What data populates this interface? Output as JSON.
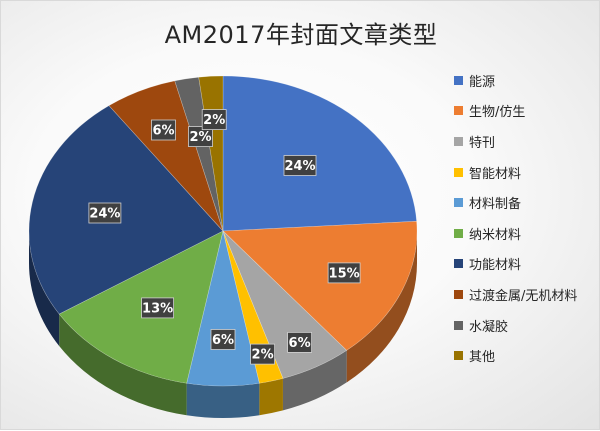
{
  "chart_data": {
    "type": "pie",
    "title": "AM2017年封面文章类型",
    "categories": [
      "能源",
      "生物/仿生",
      "特刊",
      "智能材料",
      "材料制备",
      "纳米材料",
      "功能材料",
      "过渡金属/无机材料",
      "水凝胶",
      "其他"
    ],
    "values": [
      24,
      15,
      6,
      2,
      6,
      13,
      24,
      6,
      2,
      2
    ],
    "labels": [
      "24%",
      "15%",
      "6%",
      "2%",
      "6%",
      "13%",
      "24%",
      "6%",
      "2%",
      "2%"
    ],
    "colors": [
      "#4472C4",
      "#ED7D31",
      "#A5A5A5",
      "#FFC000",
      "#5B9BD5",
      "#70AD47",
      "#264478",
      "#9E480E",
      "#636363",
      "#997300"
    ],
    "legend_position": "right",
    "style": "3d"
  }
}
